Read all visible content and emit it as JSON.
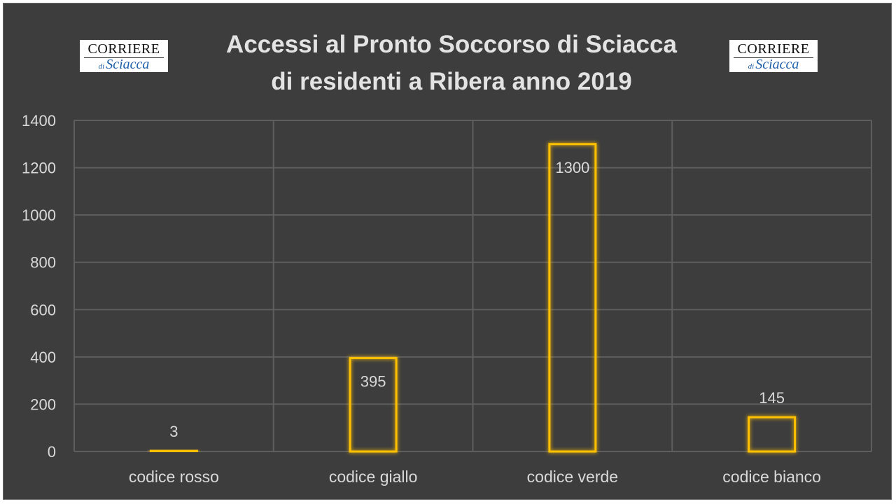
{
  "logos": {
    "left": {
      "line1": "CORRIERE",
      "line2_small": "di",
      "line2": "Sciacca"
    },
    "right": {
      "line1": "CORRIERE",
      "line2_small": "di",
      "line2": "Sciacca"
    }
  },
  "chart_data": {
    "type": "bar",
    "title_line1": "Accessi al Pronto Soccorso di Sciacca",
    "title_line2": "di residenti a Ribera anno 2019",
    "categories": [
      "codice rosso",
      "codice giallo",
      "codice verde",
      "codice bianco"
    ],
    "values": [
      3,
      395,
      1300,
      145
    ],
    "data_labels": [
      "3",
      "395",
      "1300",
      "145"
    ],
    "xlabel": "",
    "ylabel": "",
    "ylim": [
      0,
      1400
    ],
    "yticks": [
      0,
      200,
      400,
      600,
      800,
      1000,
      1200,
      1400
    ],
    "grid": true,
    "legend": "none",
    "colors": {
      "background": "#3d3d3d",
      "bar_outline": "#ffc000",
      "gridline": "#5e5e5e",
      "text": "#d9d9d9"
    }
  }
}
